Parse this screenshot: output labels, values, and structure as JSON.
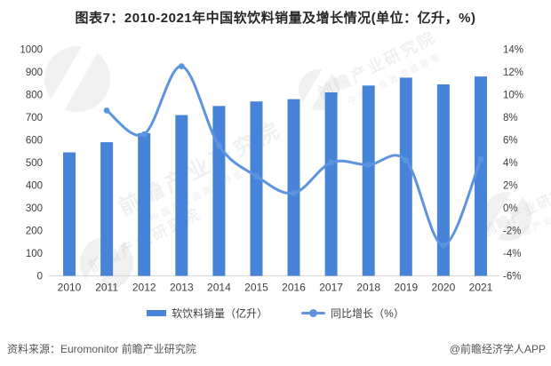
{
  "title": "图表7：2010-2021年中国软饮料销量及增长情况(单位：亿升，%)",
  "chart_data": {
    "type": "combo-bar-line",
    "title": "图表7：2010-2021年中国软饮料销量及增长情况(单位：亿升，%)",
    "categories": [
      "2010",
      "2011",
      "2012",
      "2013",
      "2014",
      "2015",
      "2016",
      "2017",
      "2018",
      "2019",
      "2020",
      "2021"
    ],
    "series": [
      {
        "name": "软饮料销量（亿升）",
        "type": "bar",
        "axis": "left",
        "values": [
          545,
          590,
          630,
          710,
          750,
          770,
          780,
          810,
          840,
          875,
          845,
          880
        ]
      },
      {
        "name": "同比增长（%）",
        "type": "line",
        "axis": "right",
        "values": [
          null,
          8.6,
          6.5,
          12.5,
          5.5,
          2.8,
          1.3,
          4.0,
          3.8,
          4.2,
          -3.3,
          4.3
        ]
      }
    ],
    "left_axis": {
      "min": 0,
      "max": 1000,
      "step": 100,
      "ticks": [
        "0",
        "100",
        "200",
        "300",
        "400",
        "500",
        "600",
        "700",
        "800",
        "900",
        "1000"
      ]
    },
    "right_axis": {
      "min": -6,
      "max": 14,
      "step": 2,
      "suffix": "%",
      "ticks": [
        "-6%",
        "-4%",
        "-2%",
        "0%",
        "2%",
        "4%",
        "6%",
        "8%",
        "10%",
        "12%",
        "14%"
      ]
    },
    "grid": false,
    "legend_position": "bottom",
    "xlabel": "",
    "ylabel": ""
  },
  "legend": {
    "bar_label": "软饮料销量（亿升）",
    "line_label": "同比增长（%）"
  },
  "footer": {
    "source": "资料来源：Euromonitor 前瞻产业研究院",
    "credit": "@前瞻经济学人APP"
  },
  "watermark": {
    "text": "前瞻产业研究院",
    "subtext": "中国产业咨询领导者"
  },
  "colors": {
    "bar": "#4784d9",
    "line": "#5d94e0",
    "title": "#262626",
    "axis_text": "#3d3d3d",
    "axis_line": "#d9d9d9",
    "footer_text": "#555555",
    "watermark": "#999999"
  }
}
